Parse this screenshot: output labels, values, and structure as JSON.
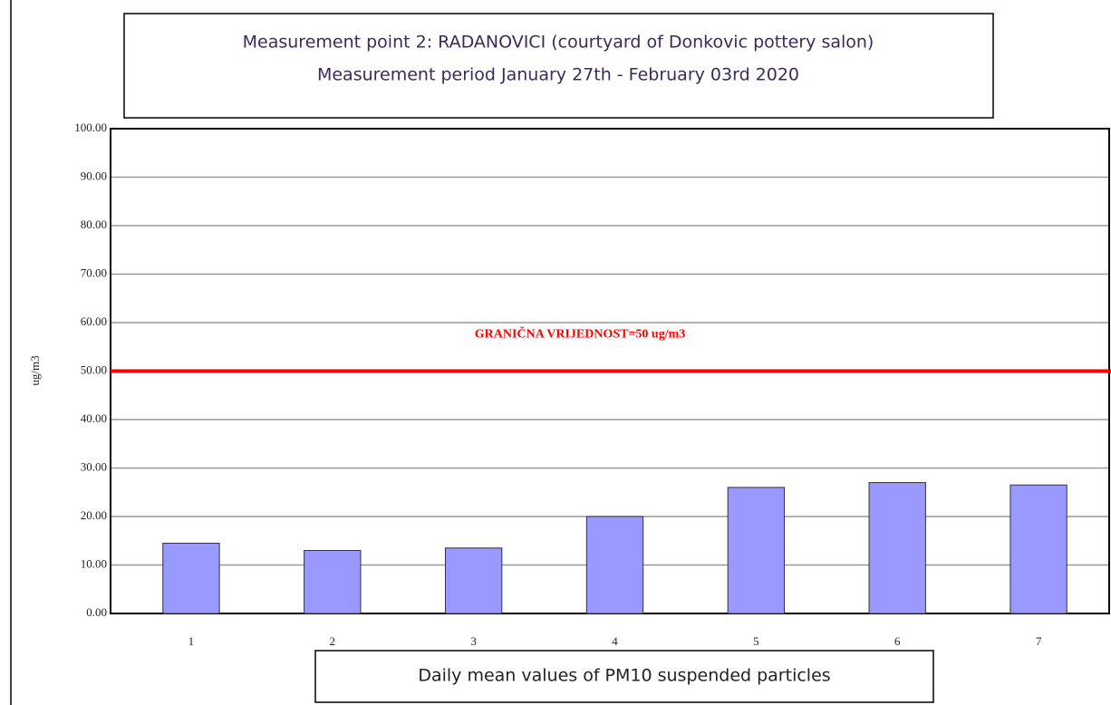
{
  "chart_data": {
    "type": "bar",
    "title": [
      "Measurement point 2: RADANOVICI (courtyard of Donkovic pottery salon)",
      "Measurement period January 27th - February 03rd 2020"
    ],
    "x_label": "Daily mean values of PM10 suspended particles",
    "y_label": "ug/m3",
    "categories": [
      "1",
      "2",
      "3",
      "4",
      "5",
      "6",
      "7"
    ],
    "values": [
      14.5,
      13,
      13.5,
      20,
      26,
      27,
      26.5
    ],
    "color": "#9999ff",
    "ylim": [
      0,
      100
    ],
    "yticks": [
      {
        "value": 0,
        "label": "0.00"
      },
      {
        "value": 10,
        "label": "10.00"
      },
      {
        "value": 20,
        "label": "20.00"
      },
      {
        "value": 30,
        "label": "30.00"
      },
      {
        "value": 40,
        "label": "40.00"
      },
      {
        "value": 50,
        "label": "50.00"
      },
      {
        "value": 60,
        "label": "60.00"
      },
      {
        "value": 70,
        "label": "70.00"
      },
      {
        "value": 80,
        "label": "80.00"
      },
      {
        "value": 90,
        "label": "90.00"
      },
      {
        "value": 100,
        "label": "100.00"
      }
    ],
    "grid": true,
    "limit": {
      "value": 50,
      "label": "GRANIČNA VRIJEDNOST=50 ug/m3",
      "color": "#ff0000"
    }
  }
}
